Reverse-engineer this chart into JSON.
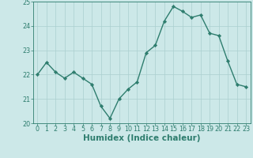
{
  "x": [
    0,
    1,
    2,
    3,
    4,
    5,
    6,
    7,
    8,
    9,
    10,
    11,
    12,
    13,
    14,
    15,
    16,
    17,
    18,
    19,
    20,
    21,
    22,
    23
  ],
  "y": [
    22.0,
    22.5,
    22.1,
    21.85,
    22.1,
    21.85,
    21.6,
    20.7,
    20.2,
    21.0,
    21.4,
    21.7,
    22.9,
    23.2,
    24.2,
    24.8,
    24.6,
    24.35,
    24.45,
    23.7,
    23.6,
    22.55,
    21.6,
    21.5
  ],
  "title": "",
  "xlabel": "Humidex (Indice chaleur)",
  "ylabel": "",
  "ylim": [
    20,
    25
  ],
  "xlim_min": -0.5,
  "xlim_max": 23.5,
  "yticks": [
    20,
    21,
    22,
    23,
    24,
    25
  ],
  "xticks": [
    0,
    1,
    2,
    3,
    4,
    5,
    6,
    7,
    8,
    9,
    10,
    11,
    12,
    13,
    14,
    15,
    16,
    17,
    18,
    19,
    20,
    21,
    22,
    23
  ],
  "line_color": "#2e7d6e",
  "marker": "D",
  "marker_size": 2.2,
  "line_width": 1.0,
  "bg_color": "#cce8e8",
  "grid_color": "#aacfcf",
  "tick_label_color": "#2e7d6e",
  "xlabel_color": "#2e7d6e",
  "tick_fontsize": 5.8,
  "xlabel_fontsize": 7.5
}
